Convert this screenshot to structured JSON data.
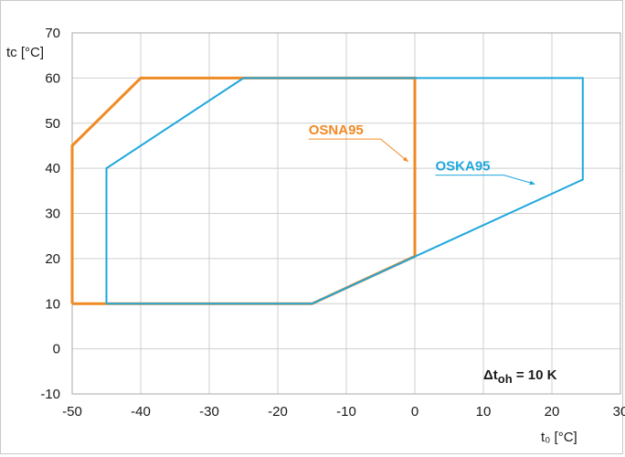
{
  "chart_data": {
    "type": "line",
    "xlabel": "t₀ [°C]",
    "ylabel": "tc [°C]",
    "xlim": [
      -50,
      30
    ],
    "ylim": [
      -10,
      70
    ],
    "x_ticks": [
      -50,
      -40,
      -30,
      -20,
      -10,
      0,
      10,
      20,
      30
    ],
    "y_ticks": [
      -10,
      0,
      10,
      20,
      30,
      40,
      50,
      60,
      70
    ],
    "grid": true,
    "series": [
      {
        "name": "OSNA95",
        "color": "#f08a24",
        "points": [
          [
            -50,
            10
          ],
          [
            -50,
            45
          ],
          [
            -40,
            60
          ],
          [
            0,
            60
          ],
          [
            0,
            20.5
          ],
          [
            -15,
            10
          ],
          [
            -50,
            10
          ]
        ]
      },
      {
        "name": "OSKA95",
        "color": "#1ea7dd",
        "points": [
          [
            -45,
            10
          ],
          [
            -45,
            40
          ],
          [
            -25,
            60
          ],
          [
            24.5,
            60
          ],
          [
            24.5,
            37.5
          ],
          [
            -15,
            10
          ],
          [
            -45,
            10
          ]
        ]
      }
    ],
    "labels": [
      {
        "series": 0,
        "text": "OSNA95",
        "at": [
          -15.5,
          47.5
        ],
        "underline_to": [
          -5,
          45
        ],
        "arrow_to": [
          -1,
          41.5
        ]
      },
      {
        "series": 1,
        "text": "OSKA95",
        "at": [
          3,
          39.5
        ],
        "underline_to": [
          13,
          37.5
        ],
        "arrow_to": [
          17.5,
          36.5
        ]
      }
    ],
    "annotation": {
      "text": "Δtoh = 10 K",
      "prefix": "Δt",
      "sub": "oh",
      "suffix": " = 10 K"
    }
  }
}
